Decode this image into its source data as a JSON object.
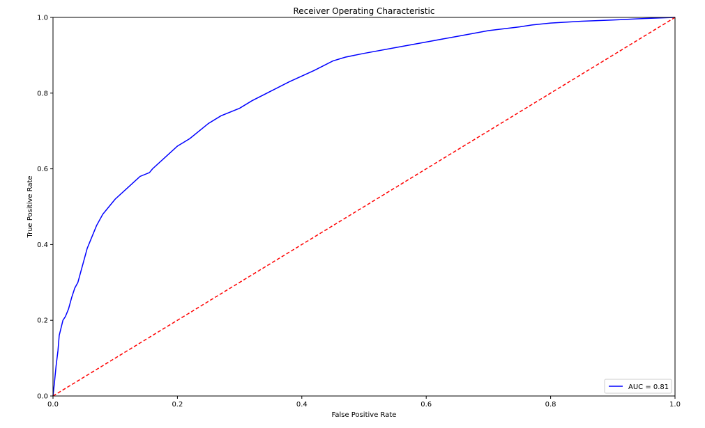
{
  "chart_data": {
    "type": "line",
    "title": "Receiver Operating Characteristic",
    "xlabel": "False Positive Rate",
    "ylabel": "True Positive Rate",
    "xlim": [
      0,
      1
    ],
    "ylim": [
      0,
      1
    ],
    "xticks": [
      0.0,
      0.2,
      0.4,
      0.6,
      0.8,
      1.0
    ],
    "yticks": [
      0.0,
      0.2,
      0.4,
      0.6,
      0.8,
      1.0
    ],
    "xtick_labels": [
      "0.0",
      "0.2",
      "0.4",
      "0.6",
      "0.8",
      "1.0"
    ],
    "ytick_labels": [
      "0.0",
      "0.2",
      "0.4",
      "0.6",
      "0.8",
      "1.0"
    ],
    "grid": false,
    "legend_position": "lower-right",
    "series": [
      {
        "name": "AUC = 0.81",
        "color": "#0000ff",
        "style": "solid",
        "x": [
          0.0,
          0.002,
          0.005,
          0.008,
          0.01,
          0.013,
          0.016,
          0.02,
          0.025,
          0.03,
          0.035,
          0.04,
          0.045,
          0.05,
          0.055,
          0.06,
          0.065,
          0.07,
          0.08,
          0.09,
          0.1,
          0.12,
          0.14,
          0.155,
          0.16,
          0.18,
          0.2,
          0.22,
          0.25,
          0.27,
          0.3,
          0.32,
          0.35,
          0.38,
          0.4,
          0.42,
          0.45,
          0.47,
          0.5,
          0.55,
          0.6,
          0.65,
          0.7,
          0.75,
          0.77,
          0.8,
          0.85,
          0.9,
          0.95,
          1.0
        ],
        "y": [
          0.0,
          0.03,
          0.08,
          0.12,
          0.16,
          0.18,
          0.2,
          0.21,
          0.23,
          0.26,
          0.285,
          0.3,
          0.33,
          0.36,
          0.39,
          0.41,
          0.43,
          0.45,
          0.48,
          0.5,
          0.52,
          0.55,
          0.58,
          0.59,
          0.6,
          0.63,
          0.66,
          0.68,
          0.72,
          0.74,
          0.76,
          0.78,
          0.805,
          0.83,
          0.845,
          0.86,
          0.885,
          0.895,
          0.905,
          0.92,
          0.935,
          0.95,
          0.965,
          0.975,
          0.98,
          0.985,
          0.99,
          0.993,
          0.997,
          1.0
        ]
      },
      {
        "color": "#ff0000",
        "style": "dashed",
        "x": [
          0,
          1
        ],
        "y": [
          0,
          1
        ]
      }
    ]
  }
}
